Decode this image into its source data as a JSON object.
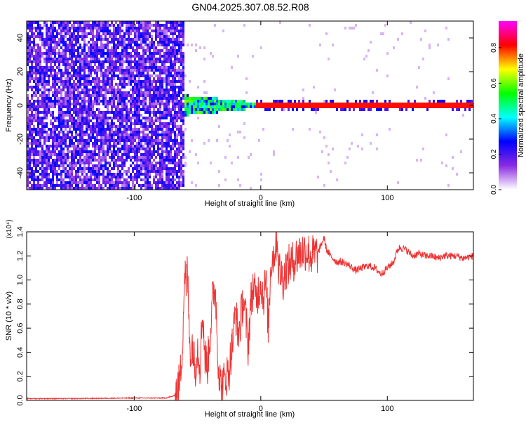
{
  "chart_data": [
    {
      "type": "heatmap",
      "title": "GN04.2025.307.08.52.R08",
      "xlabel": "Height of straight line (km)",
      "ylabel": "Frequency (Hz)",
      "xlim": [
        -185,
        168
      ],
      "ylim": [
        -50,
        50
      ],
      "xticks": [
        -100,
        0,
        100
      ],
      "xtick_labels": [
        "-100",
        "0",
        "100"
      ],
      "yticks": [
        -40,
        -20,
        0,
        20,
        40
      ],
      "ytick_labels": [
        "-40",
        "-20",
        "0",
        "20",
        "40"
      ],
      "noise_region_x": [
        -185,
        -60
      ],
      "transition_x": [
        -60,
        -5
      ],
      "signal_band_hz": [
        -2,
        2
      ],
      "colorbar": {
        "label": "Normalized spectral amplitude",
        "range": [
          0.0,
          0.95
        ],
        "ticks": [
          0.0,
          0.2,
          0.4,
          0.6,
          0.8
        ],
        "tick_labels": [
          "0.0",
          "0.2",
          "0.4",
          "0.6",
          "0.8"
        ],
        "colors": [
          "#ffffff",
          "#8a2be2",
          "#0000ff",
          "#00ffff",
          "#00ff00",
          "#ffff00",
          "#ff0000",
          "#ff00ff"
        ]
      }
    },
    {
      "type": "line",
      "xlabel": "Height of straight line (km)",
      "ylabel": "SNR (10 * v/v)",
      "multiplier": "(x10⁴)",
      "xlim": [
        -185,
        168
      ],
      "ylim": [
        0.0,
        1.4
      ],
      "xticks": [
        -100,
        0,
        100
      ],
      "xtick_labels": [
        "-100",
        "0",
        "100"
      ],
      "yticks": [
        0.0,
        0.2,
        0.4,
        0.6,
        0.8,
        1.0,
        1.2,
        1.4
      ],
      "ytick_labels": [
        "0.0",
        "0.2",
        "0.4",
        "0.6",
        "0.8",
        "1.0",
        "1.2",
        "1.4"
      ],
      "color": "#ee3333",
      "series": [
        {
          "name": "SNR",
          "x": [
            -185,
            -150,
            -100,
            -75,
            -68,
            -64,
            -62,
            -60,
            -59,
            -58,
            -57,
            -56,
            -55,
            -54,
            -52,
            -50,
            -48,
            -46,
            -44,
            -42,
            -40,
            -38,
            -36,
            -35,
            -34,
            -33,
            -32,
            -30,
            -28,
            -26,
            -25,
            -24,
            -22,
            -20,
            -18,
            -16,
            -14,
            -12,
            -10,
            -8,
            -6,
            -4,
            -2,
            0,
            2,
            4,
            6,
            8,
            10,
            12,
            13,
            14,
            16,
            18,
            20,
            25,
            30,
            35,
            40,
            45,
            48,
            50,
            52,
            55,
            60,
            65,
            70,
            75,
            80,
            85,
            90,
            95,
            100,
            105,
            108,
            110,
            115,
            120,
            125,
            130,
            135,
            140,
            145,
            150,
            155,
            160,
            168
          ],
          "y": [
            0.015,
            0.015,
            0.02,
            0.02,
            0.04,
            0.15,
            0.45,
            1.1,
            0.9,
            1.15,
            0.7,
            0.5,
            0.35,
            0.5,
            0.25,
            0.45,
            0.3,
            0.75,
            0.35,
            0.3,
            0.55,
            0.85,
            0.95,
            0.7,
            0.4,
            0.25,
            0.15,
            0.12,
            0.2,
            0.22,
            0.25,
            0.35,
            0.5,
            0.75,
            0.55,
            0.65,
            0.85,
            0.7,
            0.45,
            0.8,
            0.95,
            0.85,
            0.9,
            1.0,
            0.85,
            1.0,
            0.6,
            1.15,
            1.2,
            1.3,
            1.4,
            1.1,
            1.05,
            1.0,
            1.1,
            1.15,
            1.22,
            1.25,
            1.2,
            1.22,
            1.3,
            1.35,
            1.25,
            1.2,
            1.15,
            1.15,
            1.12,
            1.08,
            1.1,
            1.12,
            1.1,
            1.05,
            1.1,
            1.15,
            1.25,
            1.27,
            1.25,
            1.2,
            1.22,
            1.2,
            1.2,
            1.18,
            1.2,
            1.2,
            1.2,
            1.18,
            1.2
          ]
        }
      ]
    }
  ]
}
